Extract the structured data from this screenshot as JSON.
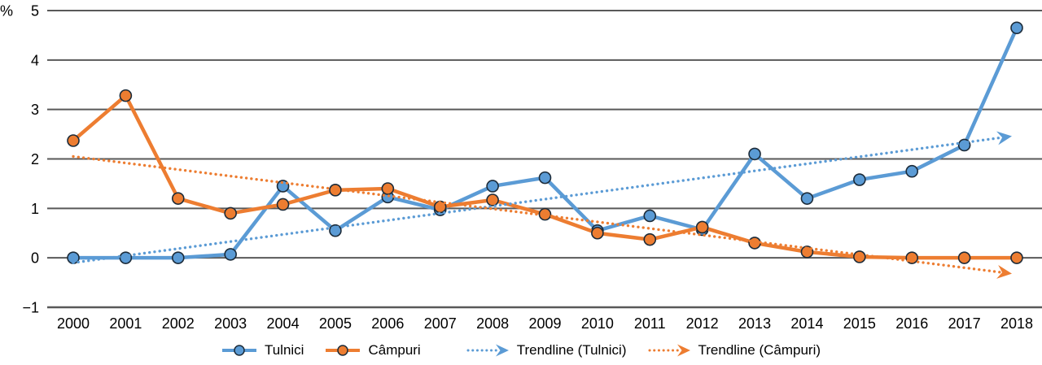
{
  "chart_data": {
    "type": "line",
    "title": "",
    "xlabel": "",
    "ylabel": "%",
    "ylim": [
      -1,
      5
    ],
    "yticks": [
      -1,
      0,
      1,
      2,
      3,
      4,
      5
    ],
    "grid": true,
    "grid_color": "#595959",
    "marker_outline": "#1c2b39",
    "legend_position": "bottom",
    "x": [
      2000,
      2001,
      2002,
      2003,
      2004,
      2005,
      2006,
      2007,
      2008,
      2009,
      2010,
      2011,
      2012,
      2013,
      2014,
      2015,
      2016,
      2017,
      2018
    ],
    "series": [
      {
        "name": "Tulnici",
        "color": "#5B9BD5",
        "values": [
          0.0,
          0.0,
          0.0,
          0.07,
          1.45,
          0.55,
          1.23,
          0.97,
          1.45,
          1.62,
          0.55,
          0.85,
          0.57,
          2.1,
          1.2,
          1.58,
          1.75,
          2.28,
          4.65
        ]
      },
      {
        "name": "Câmpuri",
        "color": "#ED7D31",
        "values": [
          2.37,
          3.28,
          1.2,
          0.9,
          1.08,
          1.37,
          1.4,
          1.03,
          1.17,
          0.88,
          0.5,
          0.37,
          0.62,
          0.3,
          0.12,
          0.02,
          0.0,
          0.0,
          0.0
        ]
      }
    ],
    "trendlines": [
      {
        "name": "Trendline (Tulnici)",
        "color": "#5B9BD5",
        "start_value": -0.1,
        "end_value": 2.46
      },
      {
        "name": "Trendline (Câmpuri)",
        "color": "#ED7D31",
        "start_value": 2.05,
        "end_value": -0.32
      }
    ]
  }
}
